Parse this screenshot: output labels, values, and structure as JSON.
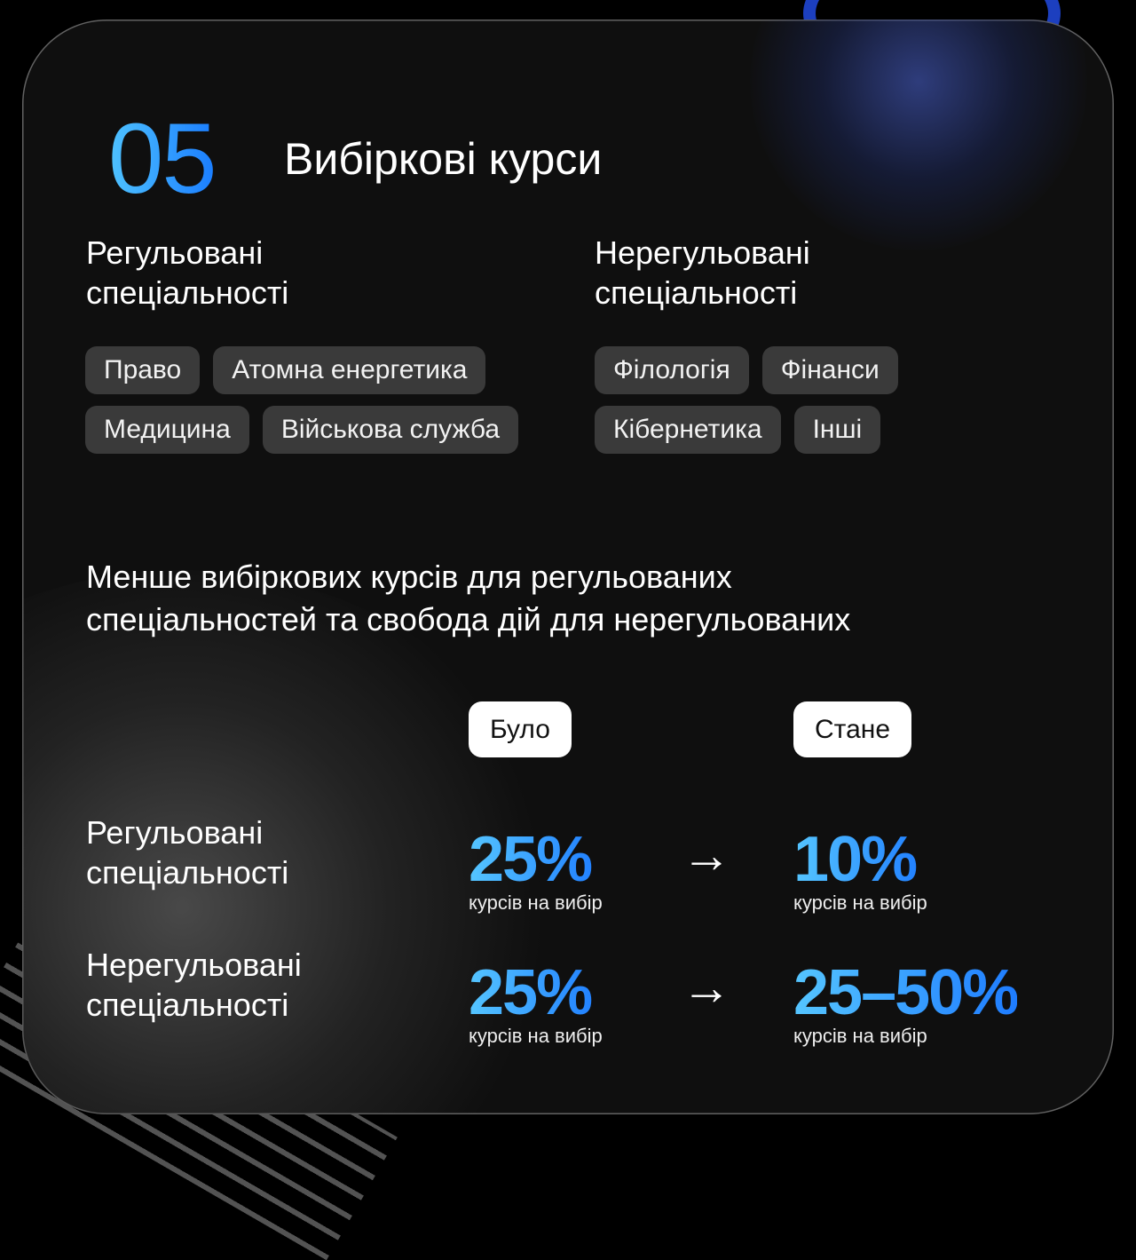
{
  "header": {
    "number": "05",
    "title": "Вибіркові курси"
  },
  "regulated": {
    "heading": [
      "Регульовані",
      "спеціальності"
    ],
    "chips": [
      "Право",
      "Атомна енергетика",
      "Медицина",
      "Військова служба"
    ]
  },
  "unregulated": {
    "heading": [
      "Нерегульовані",
      "спеціальності"
    ],
    "chips": [
      "Філологія",
      "Фінанси",
      "Кібернетика",
      "Інші"
    ]
  },
  "summary": [
    "Менше вибіркових курсів для регульованих",
    "спеціальностей та свобода дій для нерегульованих"
  ],
  "comparison": {
    "before_label": "Було",
    "after_label": "Стане",
    "rows": [
      {
        "label": [
          "Регульовані",
          "спеціальності"
        ],
        "before": "25%",
        "after": "10%",
        "caption": "курсів на вибір"
      },
      {
        "label": [
          "Нерегульовані",
          "спеціальності"
        ],
        "before": "25%",
        "after": "25–50%",
        "caption": "курсів на вибір"
      }
    ]
  },
  "icons": {
    "arrow": "arrow-right-icon"
  },
  "colors": {
    "accent": "#2a9dff",
    "background": "#0f0f0f",
    "chip": "#3a3a3a"
  }
}
